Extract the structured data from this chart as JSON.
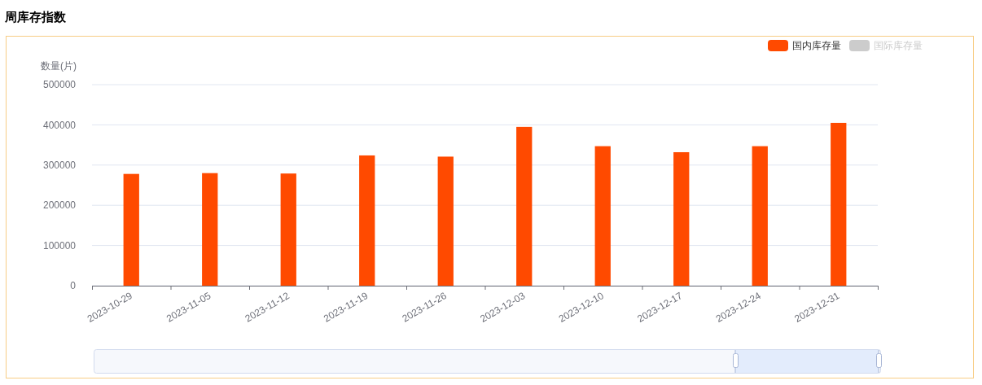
{
  "chart_data": {
    "type": "bar",
    "title": "周库存指数",
    "ylabel": "数量(片)",
    "categories": [
      "2023-10-29",
      "2023-11-05",
      "2023-11-12",
      "2023-11-19",
      "2023-11-26",
      "2023-12-03",
      "2023-12-10",
      "2023-12-17",
      "2023-12-24",
      "2023-12-31"
    ],
    "series": [
      {
        "name": "国内库存量",
        "color": "#ff4a00",
        "values": [
          278000,
          280000,
          279000,
          324000,
          321000,
          395000,
          347000,
          332000,
          347000,
          405000
        ]
      },
      {
        "name": "国际库存量",
        "color": "#cccccc",
        "values": [
          null,
          null,
          null,
          null,
          null,
          null,
          null,
          null,
          null,
          null
        ]
      }
    ],
    "ylim": [
      0,
      500000
    ],
    "yticks": [
      0,
      100000,
      200000,
      300000,
      400000,
      500000
    ],
    "grid": "y",
    "legend": "top right"
  }
}
